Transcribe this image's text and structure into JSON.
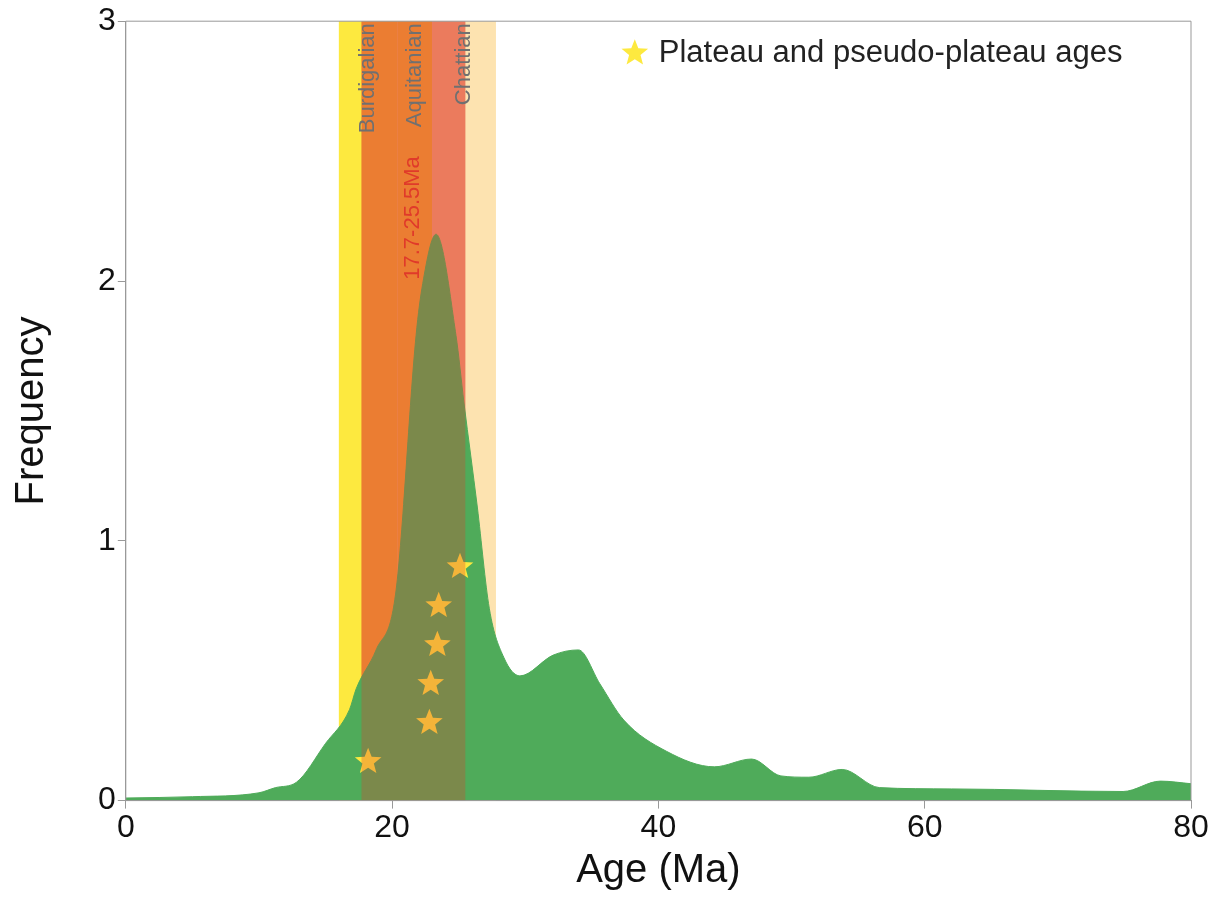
{
  "chart_data": {
    "type": "area",
    "xlabel": "Age (Ma)",
    "ylabel": "Frequency",
    "xlim": [
      0,
      80
    ],
    "xticks": [
      0,
      20,
      40,
      60,
      80
    ],
    "ylim": [
      0,
      3
    ],
    "yticks": [
      0,
      1,
      2,
      3
    ],
    "grid": false,
    "legend": "top right",
    "series": [
      {
        "color": "#4fab5a",
        "x": [
          0,
          5,
          10,
          11.25,
          12.8,
          15,
          16.8,
          17.3,
          18.8,
          20.3,
          21.8,
          22.3,
          23.3,
          24.8,
          25.4,
          26.4,
          27.3,
          28.4,
          29.6,
          32.1,
          34,
          35.6,
          37.4,
          40.6,
          44.2,
          47,
          49.2,
          51.3,
          53.8,
          56.6,
          62,
          74.9,
          77.7,
          80
        ],
        "values": [
          0.01,
          0.015,
          0.03,
          0.05,
          0.07,
          0.22,
          0.35,
          0.43,
          0.58,
          0.81,
          1.79,
          1.99,
          2.18,
          1.79,
          1.53,
          1.13,
          0.74,
          0.55,
          0.48,
          0.56,
          0.58,
          0.45,
          0.31,
          0.19,
          0.13,
          0.16,
          0.095,
          0.09,
          0.12,
          0.05,
          0.045,
          0.035,
          0.075,
          0.065
        ]
      },
      {
        "type": "scatter",
        "name": "Plateau and pseudo-plateau ages",
        "color": "#fde93f",
        "marker": "star",
        "x": [
          18.2,
          22.8,
          22.9,
          23.4,
          23.5,
          25.1
        ],
        "values": [
          0.15,
          0.3,
          0.45,
          0.6,
          0.75,
          0.9
        ]
      }
    ],
    "bands": [
      {
        "axis": "x",
        "from": 16,
        "to": 20.4,
        "label": "Burdigalian",
        "color": "#fde93f"
      },
      {
        "axis": "x",
        "from": 20.4,
        "to": 23,
        "label": "Aquitanian",
        "color": "#fde93f"
      },
      {
        "axis": "x",
        "from": 23,
        "to": 27.8,
        "label": "Chattian",
        "color": "#fde3b0"
      },
      {
        "axis": "x",
        "from": 17.7,
        "to": 25.5,
        "label": "17.7-25.5Ma",
        "color": "#e03a2a"
      }
    ]
  }
}
